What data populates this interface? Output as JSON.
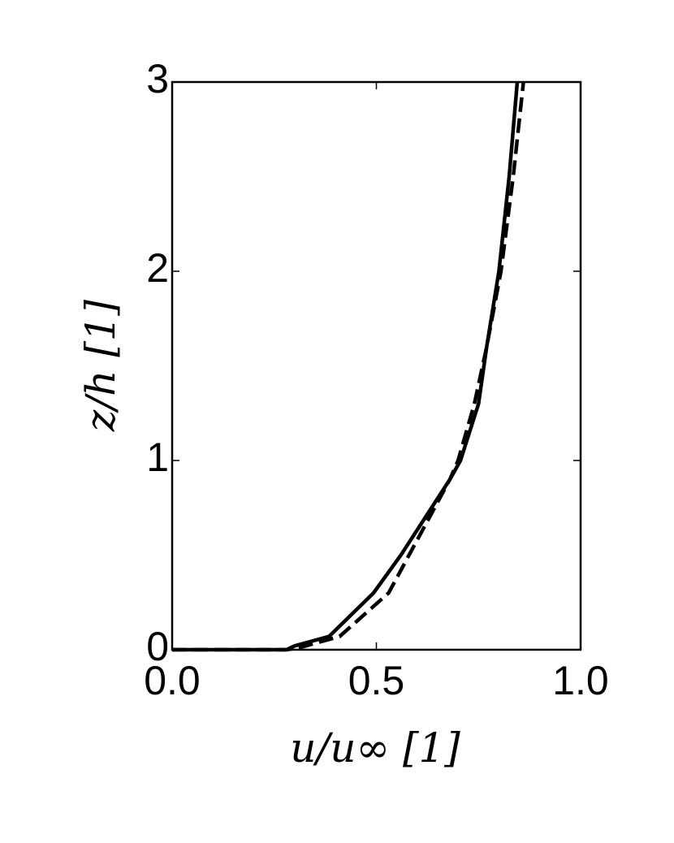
{
  "chart_data": {
    "type": "line",
    "xlabel": "u/u∞ [1]",
    "ylabel": "z/h [1]",
    "xlim": [
      0,
      1
    ],
    "ylim": [
      0,
      3
    ],
    "xticks": [
      {
        "value": 0,
        "label": "0.0"
      },
      0.5,
      {
        "value": 1,
        "label": "1.0"
      }
    ],
    "yticks": [
      0,
      1,
      2,
      3
    ],
    "grid": false,
    "series": [
      {
        "color": "#000000",
        "linestyle": "solid",
        "x": [
          0,
          0.28,
          0.3,
          0.384,
          0.493,
          0.56,
          0.62,
          0.68,
          0.706,
          0.75,
          0.77,
          0.8,
          0.825,
          0.845
        ],
        "values": [
          0,
          0,
          0.02,
          0.07,
          0.3,
          0.5,
          0.7,
          0.9,
          1.0,
          1.3,
          1.6,
          2,
          2.5,
          3
        ]
      },
      {
        "color": "#000000",
        "linestyle": "dashed",
        "x": [
          0,
          0.28,
          0.31,
          0.41,
          0.53,
          0.58,
          0.63,
          0.68,
          0.7,
          0.74,
          0.77,
          0.805,
          0.835,
          0.86
        ],
        "values": [
          0,
          0,
          0.01,
          0.07,
          0.3,
          0.5,
          0.7,
          0.9,
          1.0,
          1.3,
          1.6,
          2,
          2.5,
          3
        ]
      }
    ]
  }
}
